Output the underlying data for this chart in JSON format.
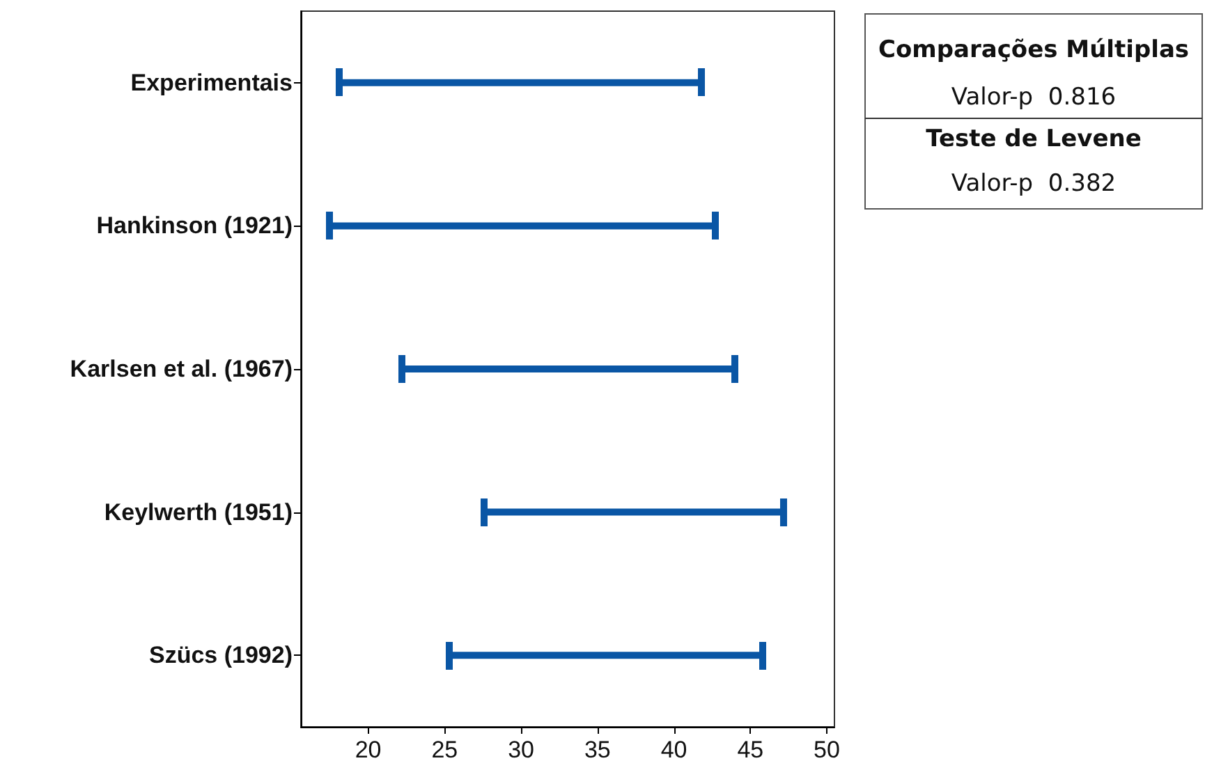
{
  "chart_data": {
    "type": "bar",
    "orientation": "horizontal",
    "categories": [
      "Experimentais",
      "Hankinson (1921)",
      "Karlsen et al. (1967)",
      "Keylwerth (1951)",
      "Szücs (1992)"
    ],
    "base": [
      18.1,
      17.5,
      22.2,
      27.6,
      25.3
    ],
    "values": [
      23.7,
      25.2,
      21.8,
      19.6,
      20.5
    ],
    "color": "#0a56a5",
    "xlim": [
      15.6,
      50.5
    ],
    "xticks": [
      20,
      25,
      30,
      35,
      40,
      45,
      50
    ],
    "grid": false,
    "annotations": [
      "Comparações Múltiplas",
      "Valor-p  0.816",
      "Teste de Levene",
      "Valor-p  0.382"
    ]
  }
}
